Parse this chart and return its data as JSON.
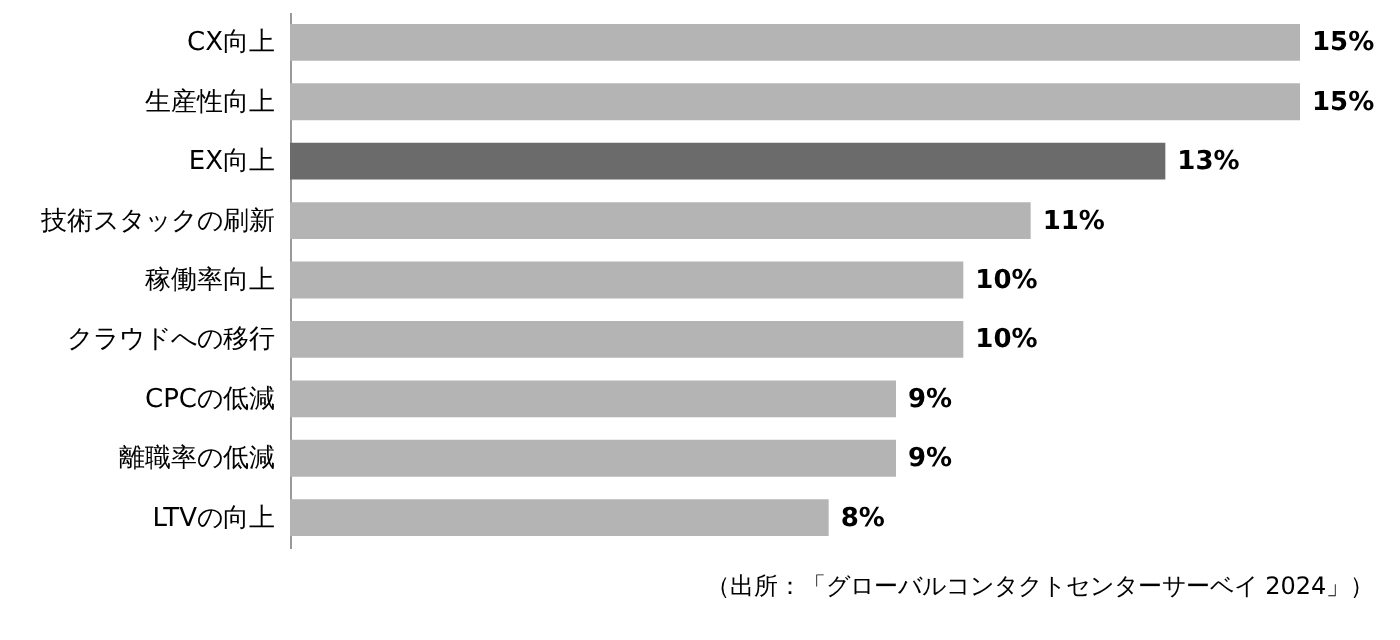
{
  "chart_data": {
    "type": "bar",
    "orientation": "horizontal",
    "categories": [
      "CX向上",
      "生産性向上",
      "EX向上",
      "技術スタックの刷新",
      "稼働率向上",
      "クラウドへの移行",
      "CPCの低減",
      "離職率の低減",
      "LTVの向上"
    ],
    "values": [
      15,
      15,
      13,
      11,
      10,
      10,
      9,
      9,
      8
    ],
    "colors": [
      "#b4b4b4",
      "#b4b4b4",
      "#6b6b6b",
      "#b4b4b4",
      "#b4b4b4",
      "#b4b4b4",
      "#b4b4b4",
      "#b4b4b4",
      "#b4b4b4"
    ],
    "value_labels": [
      "15%",
      "15%",
      "13%",
      "11%",
      "10%",
      "10%",
      "9%",
      "9%",
      "8%"
    ],
    "annotations": [
      "（出所：「グローバルコンタクトセンターサーベイ 2024」）"
    ]
  }
}
